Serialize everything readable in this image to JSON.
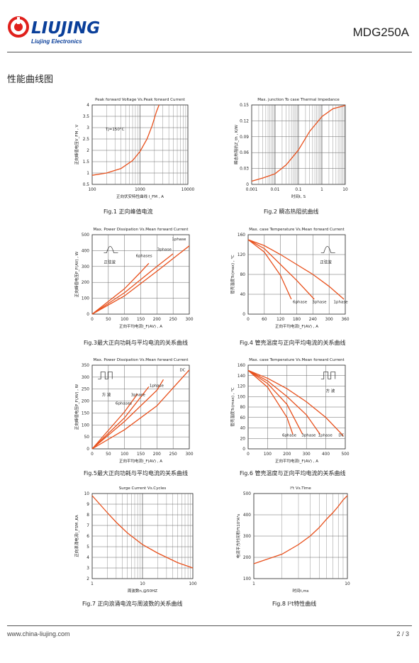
{
  "header": {
    "brand": "LIUJING",
    "brand_sub": "Liujing  Electronics",
    "part_number": "MDG250A"
  },
  "section_title": "性能曲线图",
  "colors": {
    "curve": "#e8501c",
    "brand_red": "#e0201c",
    "brand_blue": "#0a3f9a",
    "grid": "#666666"
  },
  "figures": [
    {
      "id": "fig1",
      "title": "Peak forward Voltage Vs.Peak forward Current",
      "caption": "Fig.1 正向峰值电流",
      "xlabel": "正向伏安特性曲线 I_FM , A",
      "ylabel": "正向峰值电压V_FM , V",
      "xticks": [
        "100",
        "1000",
        "10000"
      ],
      "yticks": [
        "4",
        "3.5",
        "3",
        "2.5",
        "2",
        "1.5",
        "1",
        "0.5"
      ],
      "annotations": [
        "Tj=150°C"
      ]
    },
    {
      "id": "fig2",
      "title": "Max. junction To case Thermal Impedance",
      "caption": "Fig.2 瞬态热阻抗曲线",
      "xlabel": "时间t, S",
      "ylabel": "瞬态热阻抗Z_th , K/W",
      "xticks": [
        "0.001",
        "0.01",
        "0.1",
        "1",
        "10"
      ],
      "yticks": [
        "0.15",
        "0.12",
        "0.09",
        "0.06",
        "0.03",
        "0"
      ]
    },
    {
      "id": "fig3",
      "title": "Max. Power Dissipation Vs.Mean forward Current",
      "caption": "Fig.3最大正向功耗与平均电流的关系曲线",
      "xlabel": "正向平均电流I_F(AV) , A",
      "ylabel": "正向峰值电压P_F(AV) , W",
      "xticks": [
        "0",
        "50",
        "100",
        "150",
        "200",
        "250",
        "300"
      ],
      "yticks": [
        "500",
        "400",
        "300",
        "200",
        "100",
        "0"
      ],
      "annotations": [
        "1phase",
        "3phase",
        "6phases",
        "正弦波"
      ]
    },
    {
      "id": "fig4",
      "title": "Max. case Temperature Vs.Mean forward Current",
      "caption": "Fig.4 管壳温度与正向平均电流的关系曲线",
      "xlabel": "正向平均电流I_F(AV) , A",
      "ylabel": "管壳温度Tc(max) , ℃",
      "xticks": [
        "0",
        "60",
        "120",
        "180",
        "240",
        "300",
        "360"
      ],
      "yticks": [
        "160",
        "120",
        "80",
        "40",
        "0"
      ],
      "annotations": [
        "6phase",
        "3phase",
        "1phase",
        "正弦波"
      ]
    },
    {
      "id": "fig5",
      "title": "Max. Power Dissipation Vs.Mean forward Current",
      "caption": "Fig.5最大正向功耗与平均电流的关系曲线",
      "xlabel": "正向平均电流I_F(AV) , A",
      "ylabel": "正向峰值电压P_F(AV) , W",
      "xticks": [
        "0",
        "50",
        "100",
        "150",
        "200",
        "250",
        "300"
      ],
      "yticks": [
        "350",
        "300",
        "250",
        "200",
        "150",
        "100",
        "50",
        "0"
      ],
      "annotations": [
        "DC",
        "1phase",
        "3phase",
        "6phases",
        "方 波"
      ]
    },
    {
      "id": "fig6",
      "title": "Max. case Temperature Vs.Mean forward Current",
      "caption": "Fig.6 管壳温度与正向平均电流的关系曲线",
      "xlabel": "正向平均电流I_F(AV) , A",
      "ylabel": "管壳温度Tc(max) , ℃",
      "xticks": [
        "0",
        "100",
        "200",
        "300",
        "400",
        "500"
      ],
      "yticks": [
        "160",
        "140",
        "120",
        "100",
        "80",
        "60",
        "40",
        "20",
        "0"
      ],
      "annotations": [
        "6phase",
        "3phase",
        "1phase",
        "DC",
        "方 波"
      ]
    },
    {
      "id": "fig7",
      "title": "Surge Current Vs.Cycles",
      "caption": "Fig.7 正向浪涌电流与周波数的关系曲线",
      "xlabel": "周波数n,@50HZ",
      "ylabel": "正向浪涌电流I_FSM ,KA",
      "xticks": [
        "1",
        "10",
        "100"
      ],
      "yticks": [
        "10",
        "9",
        "8",
        "7",
        "6",
        "5",
        "4",
        "3",
        "2"
      ]
    },
    {
      "id": "fig8",
      "title": "I²t Vs.Time",
      "caption": "Fig.8 I²t特性曲线",
      "xlabel": "时间t,ms",
      "ylabel": "电流平方时间积I²t10³A²s",
      "xticks": [
        "1",
        "10"
      ],
      "yticks": [
        "500",
        "400",
        "300",
        "200",
        "100"
      ]
    }
  ],
  "chart_data": [
    {
      "type": "line",
      "title": "Peak forward Voltage Vs.Peak forward Current",
      "xscale": "log",
      "xlim": [
        100,
        10000
      ],
      "ylim": [
        0.5,
        4
      ],
      "series": [
        {
          "x": [
            100,
            200,
            400,
            700,
            1000,
            1400,
            1800,
            2200,
            2500
          ],
          "values": [
            0.9,
            1.0,
            1.2,
            1.55,
            1.95,
            2.5,
            3.1,
            3.7,
            4.0
          ]
        }
      ]
    },
    {
      "type": "line",
      "title": "Max. junction To case Thermal Impedance",
      "xscale": "log",
      "xlim": [
        0.001,
        10
      ],
      "ylim": [
        0,
        0.15
      ],
      "series": [
        {
          "x": [
            0.001,
            0.003,
            0.01,
            0.03,
            0.1,
            0.3,
            1,
            3,
            10
          ],
          "values": [
            0.006,
            0.012,
            0.02,
            0.037,
            0.065,
            0.1,
            0.128,
            0.143,
            0.149
          ]
        }
      ]
    },
    {
      "type": "line",
      "title": "Max. Power Dissipation Vs.Mean forward Current",
      "xlim": [
        0,
        300
      ],
      "ylim": [
        0,
        500
      ],
      "series": [
        {
          "name": "1phase",
          "x": [
            0,
            100,
            200,
            300
          ],
          "values": [
            0,
            115,
            270,
            430
          ]
        },
        {
          "name": "3phase",
          "x": [
            0,
            100,
            200,
            250
          ],
          "values": [
            0,
            135,
            300,
            380
          ]
        },
        {
          "name": "6phases",
          "x": [
            0,
            100,
            150,
            175
          ],
          "values": [
            0,
            160,
            265,
            320
          ]
        }
      ]
    },
    {
      "type": "line",
      "title": "Max. case Temperature Vs.Mean forward Current",
      "xlim": [
        0,
        360
      ],
      "ylim": [
        0,
        160
      ],
      "series": [
        {
          "name": "6phase",
          "x": [
            0,
            60,
            120,
            160
          ],
          "values": [
            150,
            125,
            78,
            30
          ]
        },
        {
          "name": "3phase",
          "x": [
            0,
            60,
            120,
            180,
            245
          ],
          "values": [
            150,
            132,
            100,
            68,
            30
          ]
        },
        {
          "name": "1phase",
          "x": [
            0,
            60,
            120,
            180,
            240,
            300,
            355
          ],
          "values": [
            150,
            138,
            120,
            100,
            80,
            56,
            30
          ]
        }
      ]
    },
    {
      "type": "line",
      "title": "Max. Power Dissipation Vs.Mean forward Current",
      "xlim": [
        0,
        300
      ],
      "ylim": [
        0,
        350
      ],
      "series": [
        {
          "name": "DC",
          "x": [
            0,
            100,
            200,
            300
          ],
          "values": [
            0,
            80,
            180,
            330
          ]
        },
        {
          "name": "1phase",
          "x": [
            0,
            100,
            200,
            220
          ],
          "values": [
            0,
            115,
            245,
            290
          ]
        },
        {
          "name": "3phase",
          "x": [
            0,
            100,
            175
          ],
          "values": [
            0,
            130,
            260
          ]
        },
        {
          "name": "6phases",
          "x": [
            0,
            100,
            140
          ],
          "values": [
            0,
            155,
            230
          ]
        }
      ]
    },
    {
      "type": "line",
      "title": "Max. case Temperature Vs.Mean forward Current",
      "xlim": [
        0,
        500
      ],
      "ylim": [
        0,
        160
      ],
      "series": [
        {
          "name": "6phase",
          "x": [
            0,
            100,
            200,
            230
          ],
          "values": [
            150,
            118,
            60,
            28
          ]
        },
        {
          "name": "3phase",
          "x": [
            0,
            100,
            200,
            280
          ],
          "values": [
            150,
            125,
            85,
            28
          ]
        },
        {
          "name": "1phase",
          "x": [
            0,
            100,
            200,
            300,
            370
          ],
          "values": [
            150,
            130,
            100,
            65,
            28
          ]
        },
        {
          "name": "DC",
          "x": [
            0,
            100,
            200,
            300,
            400,
            490
          ],
          "values": [
            150,
            135,
            115,
            90,
            60,
            25
          ]
        }
      ]
    },
    {
      "type": "line",
      "title": "Surge Current Vs.Cycles",
      "xscale": "log",
      "xlim": [
        1,
        100
      ],
      "ylim": [
        2,
        10
      ],
      "series": [
        {
          "x": [
            1,
            2,
            3,
            5,
            10,
            20,
            50,
            100
          ],
          "values": [
            9.8,
            8.2,
            7.3,
            6.3,
            5.2,
            4.4,
            3.5,
            3.0
          ]
        }
      ]
    },
    {
      "type": "line",
      "title": "I²t Vs.Time",
      "xscale": "log",
      "xlim": [
        1,
        10
      ],
      "ylim": [
        100,
        500
      ],
      "series": [
        {
          "x": [
            1,
            2,
            3,
            4,
            5,
            6,
            7,
            8,
            9,
            10
          ],
          "values": [
            170,
            215,
            260,
            300,
            340,
            380,
            410,
            440,
            470,
            490
          ]
        }
      ]
    }
  ]
}
